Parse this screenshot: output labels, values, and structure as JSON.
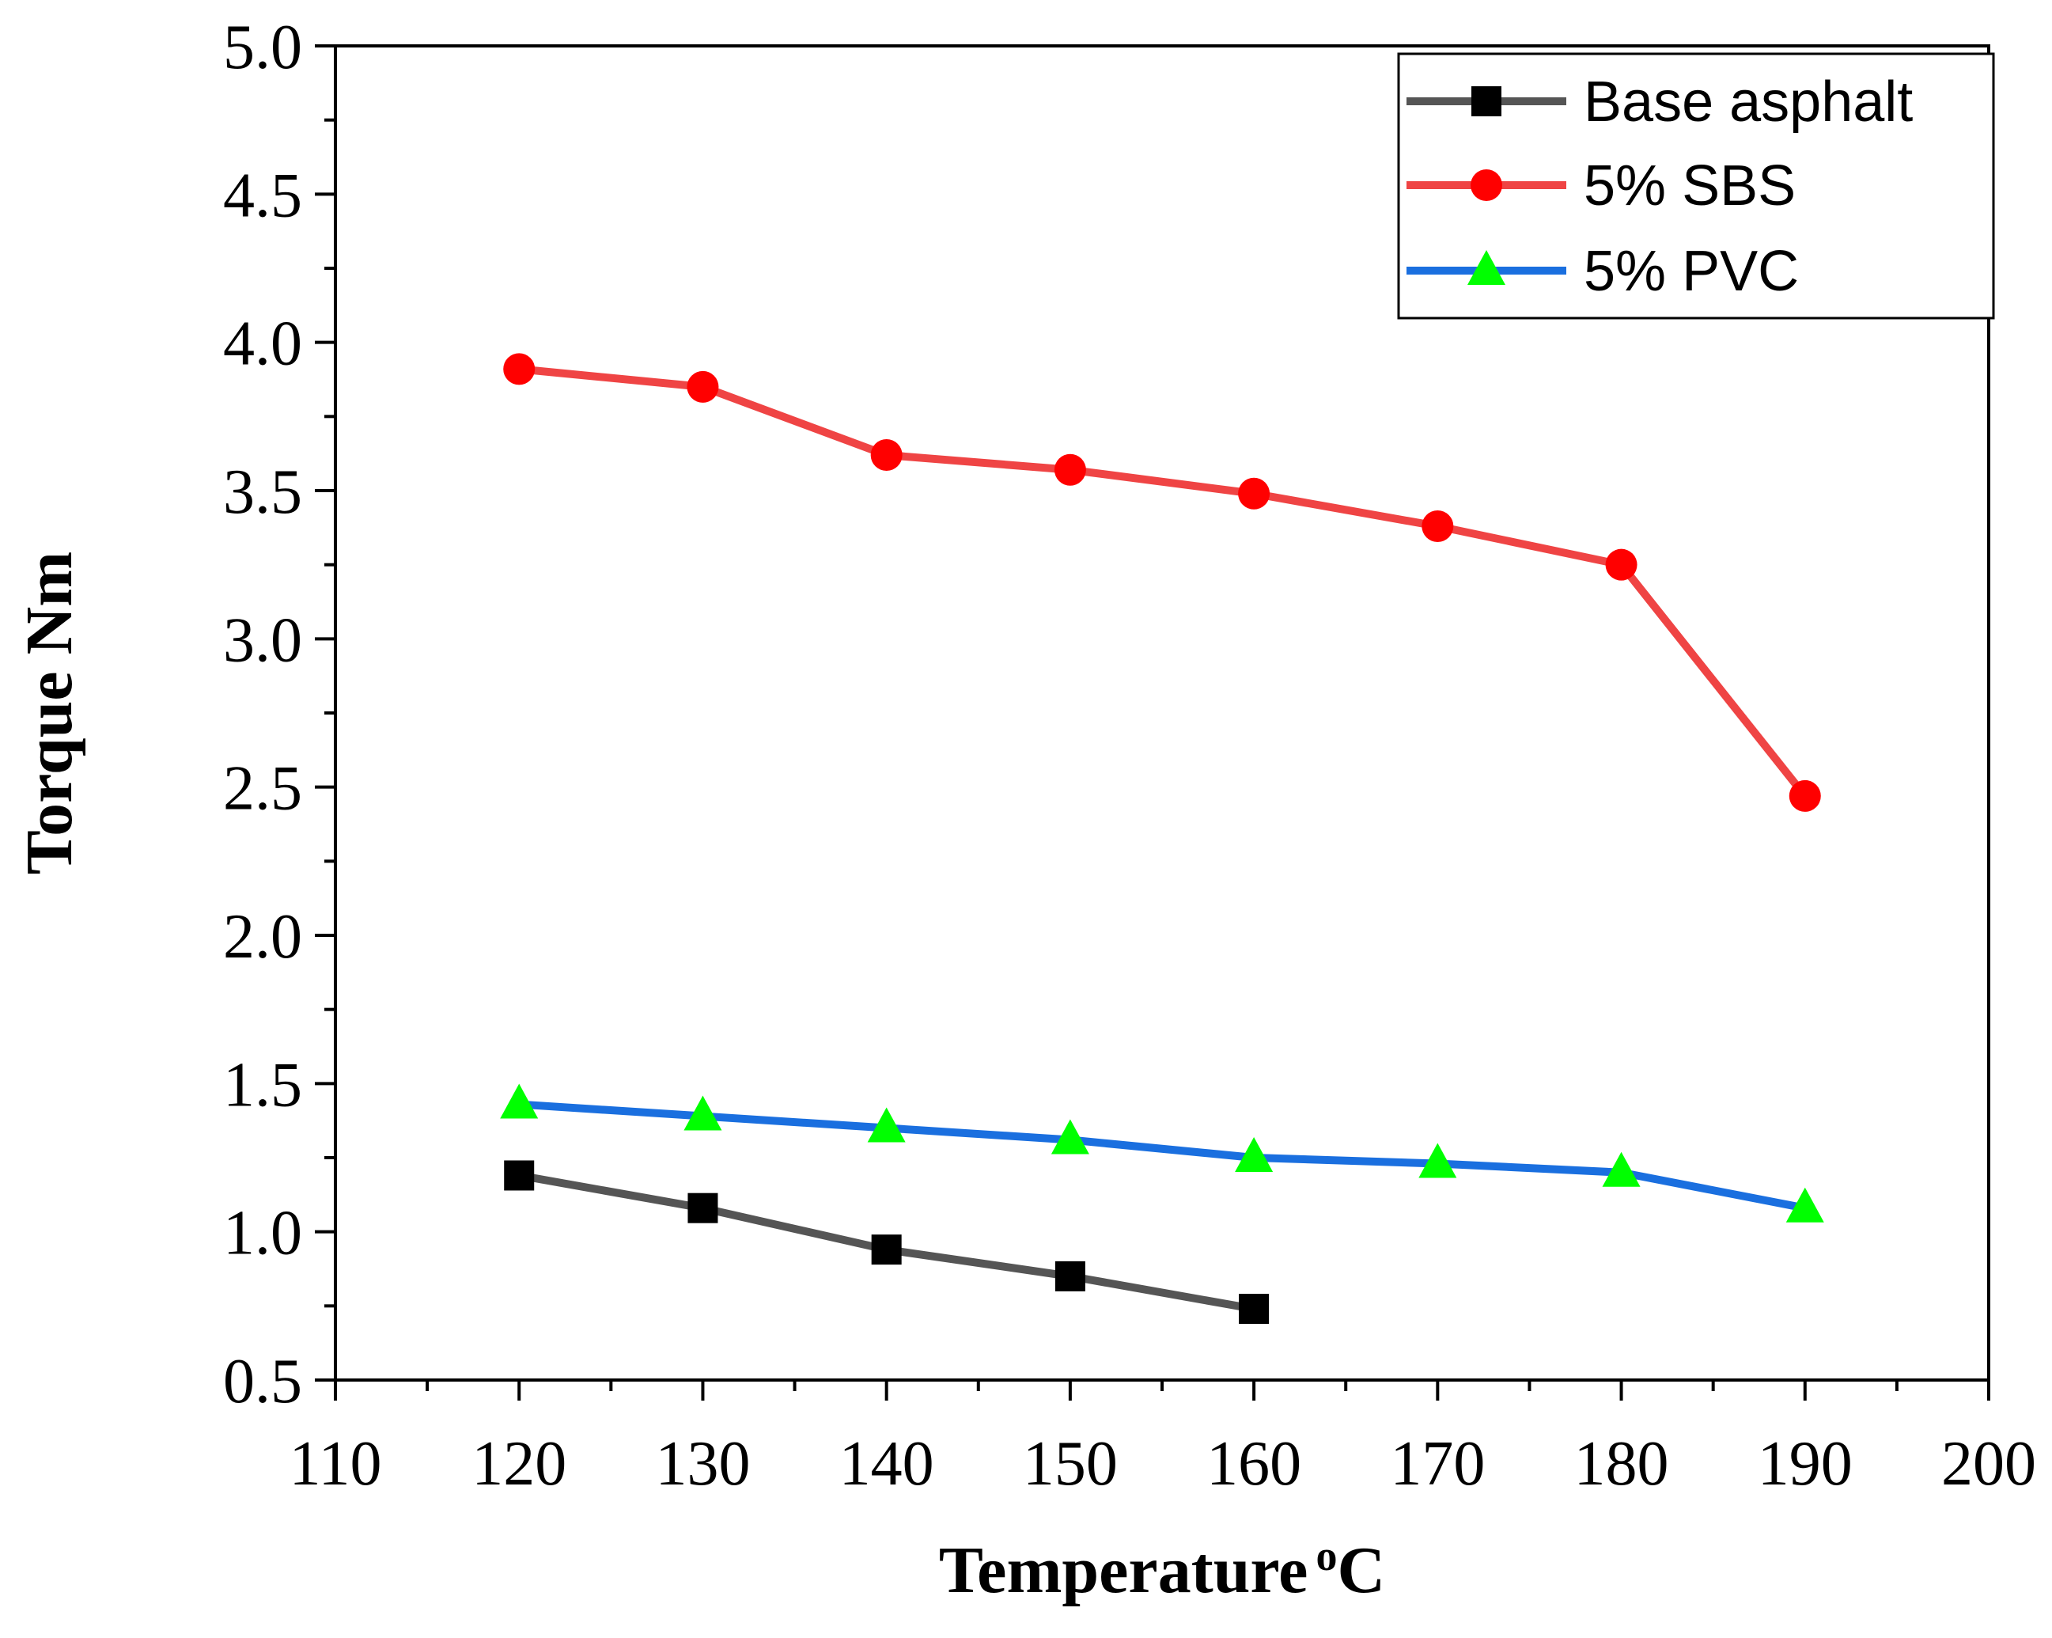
{
  "chart_data": {
    "type": "line",
    "title": "",
    "xlabel": "Temperature",
    "xlabel_sup": "o",
    "xlabel_suffix": "C",
    "ylabel": "Torque Nm",
    "xlim": [
      110,
      200
    ],
    "ylim": [
      0.5,
      5.0
    ],
    "x_major_ticks": [
      110,
      120,
      130,
      140,
      150,
      160,
      170,
      180,
      190,
      200
    ],
    "x_tick_labels": [
      "110",
      "120",
      "130",
      "140",
      "150",
      "160",
      "170",
      "180",
      "190",
      "200"
    ],
    "x_minor_ticks": [
      115,
      125,
      135,
      145,
      155,
      165,
      175,
      185,
      195
    ],
    "y_major_ticks": [
      0.5,
      1.0,
      1.5,
      2.0,
      2.5,
      3.0,
      3.5,
      4.0,
      4.5,
      5.0
    ],
    "y_tick_labels": [
      "0.5",
      "1.0",
      "1.5",
      "2.0",
      "2.5",
      "3.0",
      "3.5",
      "4.0",
      "4.5",
      "5.0"
    ],
    "y_minor_ticks": [
      0.75,
      1.25,
      1.75,
      2.25,
      2.75,
      3.25,
      3.75,
      4.25,
      4.75
    ],
    "grid": false,
    "legend_position": "top-right",
    "series": [
      {
        "name": "Base asphalt",
        "marker": "square",
        "line_color": "#555555",
        "marker_color": "#000000",
        "x": [
          120,
          130,
          140,
          150,
          160
        ],
        "values": [
          1.19,
          1.08,
          0.94,
          0.85,
          0.74
        ]
      },
      {
        "name": "5% SBS",
        "marker": "circle",
        "line_color": "#ef4444",
        "marker_color": "#ff0000",
        "x": [
          120,
          130,
          140,
          150,
          160,
          170,
          180,
          190
        ],
        "values": [
          3.91,
          3.85,
          3.62,
          3.57,
          3.49,
          3.38,
          3.25,
          2.47
        ]
      },
      {
        "name": "5% PVC",
        "marker": "triangle",
        "line_color": "#1a6fdf",
        "marker_color": "#00ff00",
        "x": [
          120,
          130,
          140,
          150,
          160,
          170,
          180,
          190
        ],
        "values": [
          1.43,
          1.39,
          1.35,
          1.31,
          1.25,
          1.23,
          1.2,
          1.08
        ]
      }
    ]
  }
}
